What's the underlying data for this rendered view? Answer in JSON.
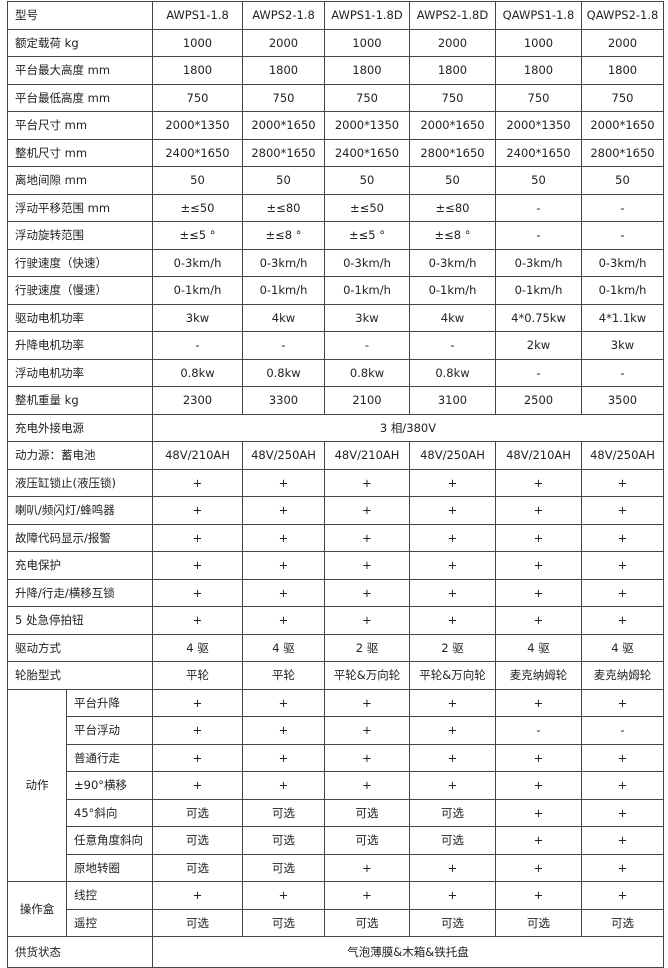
{
  "header": {
    "label": "型号",
    "models": [
      "AWPS1-1.8",
      "AWPS2-1.8",
      "AWPS1-1.8D",
      "AWPS2-1.8D",
      "QAWPS1-1.8",
      "QAWPS2-1.8"
    ]
  },
  "rows": [
    {
      "label": "额定载荷 kg",
      "values": [
        "1000",
        "2000",
        "1000",
        "2000",
        "1000",
        "2000"
      ]
    },
    {
      "label": "平台最大高度 mm",
      "values": [
        "1800",
        "1800",
        "1800",
        "1800",
        "1800",
        "1800"
      ]
    },
    {
      "label": "平台最低高度 mm",
      "values": [
        "750",
        "750",
        "750",
        "750",
        "750",
        "750"
      ]
    },
    {
      "label": "平台尺寸 mm",
      "values": [
        "2000*1350",
        "2000*1650",
        "2000*1350",
        "2000*1650",
        "2000*1350",
        "2000*1650"
      ]
    },
    {
      "label": "整机尺寸 mm",
      "values": [
        "2400*1650",
        "2800*1650",
        "2400*1650",
        "2800*1650",
        "2400*1650",
        "2800*1650"
      ]
    },
    {
      "label": "离地间隙 mm",
      "values": [
        "50",
        "50",
        "50",
        "50",
        "50",
        "50"
      ]
    },
    {
      "label": "浮动平移范围 mm",
      "values": [
        "±≤50",
        "±≤80",
        "±≤50",
        "±≤80",
        "-",
        "-"
      ]
    },
    {
      "label": "浮动旋转范围",
      "values": [
        "±≤5 °",
        "±≤8 °",
        "±≤5 °",
        "±≤8 °",
        "-",
        "-"
      ]
    },
    {
      "label": "行驶速度（快速）",
      "values": [
        "0-3km/h",
        "0-3km/h",
        "0-3km/h",
        "0-3km/h",
        "0-3km/h",
        "0-3km/h"
      ]
    },
    {
      "label": "行驶速度（慢速）",
      "values": [
        "0-1km/h",
        "0-1km/h",
        "0-1km/h",
        "0-1km/h",
        "0-1km/h",
        "0-1km/h"
      ]
    },
    {
      "label": "驱动电机功率",
      "values": [
        "3kw",
        "4kw",
        "3kw",
        "4kw",
        "4*0.75kw",
        "4*1.1kw"
      ]
    },
    {
      "label": "升降电机功率",
      "values": [
        "-",
        "-",
        "-",
        "-",
        "2kw",
        "3kw"
      ]
    },
    {
      "label": "浮动电机功率",
      "values": [
        "0.8kw",
        "0.8kw",
        "0.8kw",
        "0.8kw",
        "-",
        "-"
      ]
    },
    {
      "label": "整机重量 kg",
      "values": [
        "2300",
        "3300",
        "2100",
        "3100",
        "2500",
        "3500"
      ]
    }
  ],
  "charging": {
    "label": "充电外接电源",
    "value": "3 相/380V"
  },
  "rows2": [
    {
      "label": "动力源：蓄电池",
      "values": [
        "48V/210AH",
        "48V/250AH",
        "48V/210AH",
        "48V/250AH",
        "48V/210AH",
        "48V/250AH"
      ]
    },
    {
      "label": "液压缸锁止(液压锁)",
      "values": [
        "+",
        "+",
        "+",
        "+",
        "+",
        "+"
      ]
    },
    {
      "label": "喇叭/频闪灯/蜂鸣器",
      "values": [
        "+",
        "+",
        "+",
        "+",
        "+",
        "+"
      ]
    },
    {
      "label": "故障代码显示/报警",
      "values": [
        "+",
        "+",
        "+",
        "+",
        "+",
        "+"
      ]
    },
    {
      "label": "充电保护",
      "values": [
        "+",
        "+",
        "+",
        "+",
        "+",
        "+"
      ]
    },
    {
      "label": "升降/行走/横移互锁",
      "values": [
        "+",
        "+",
        "+",
        "+",
        "+",
        "+"
      ]
    },
    {
      "label": "5 处急停拍钮",
      "values": [
        "+",
        "+",
        "+",
        "+",
        "+",
        "+"
      ]
    },
    {
      "label": "驱动方式",
      "values": [
        "4 驱",
        "4 驱",
        "2 驱",
        "2 驱",
        "4 驱",
        "4 驱"
      ]
    },
    {
      "label": "轮胎型式",
      "values": [
        "平轮",
        "平轮",
        "平轮&万向轮",
        "平轮&万向轮",
        "麦克纳姆轮",
        "麦克纳姆轮"
      ]
    }
  ],
  "actions": {
    "label": "动作",
    "rows": [
      {
        "label": "平台升降",
        "values": [
          "+",
          "+",
          "+",
          "+",
          "+",
          "+"
        ]
      },
      {
        "label": "平台浮动",
        "values": [
          "+",
          "+",
          "+",
          "+",
          "-",
          "-"
        ]
      },
      {
        "label": "普通行走",
        "values": [
          "+",
          "+",
          "+",
          "+",
          "+",
          "+"
        ]
      },
      {
        "label": "±90°横移",
        "values": [
          "+",
          "+",
          "+",
          "+",
          "+",
          "+"
        ]
      },
      {
        "label": "45°斜向",
        "values": [
          "可选",
          "可选",
          "可选",
          "可选",
          "+",
          "+"
        ]
      },
      {
        "label": "任意角度斜向",
        "values": [
          "可选",
          "可选",
          "可选",
          "可选",
          "+",
          "+"
        ]
      },
      {
        "label": "原地转圈",
        "values": [
          "可选",
          "可选",
          "+",
          "+",
          "+",
          "+"
        ]
      }
    ]
  },
  "control_box": {
    "label": "操作盒",
    "rows": [
      {
        "label": "线控",
        "values": [
          "+",
          "+",
          "+",
          "+",
          "+",
          "+"
        ]
      },
      {
        "label": "遥控",
        "values": [
          "可选",
          "可选",
          "可选",
          "可选",
          "可选",
          "可选"
        ]
      }
    ]
  },
  "supply": {
    "label": "供货状态",
    "value": "气泡薄膜&木箱&铁托盘"
  }
}
